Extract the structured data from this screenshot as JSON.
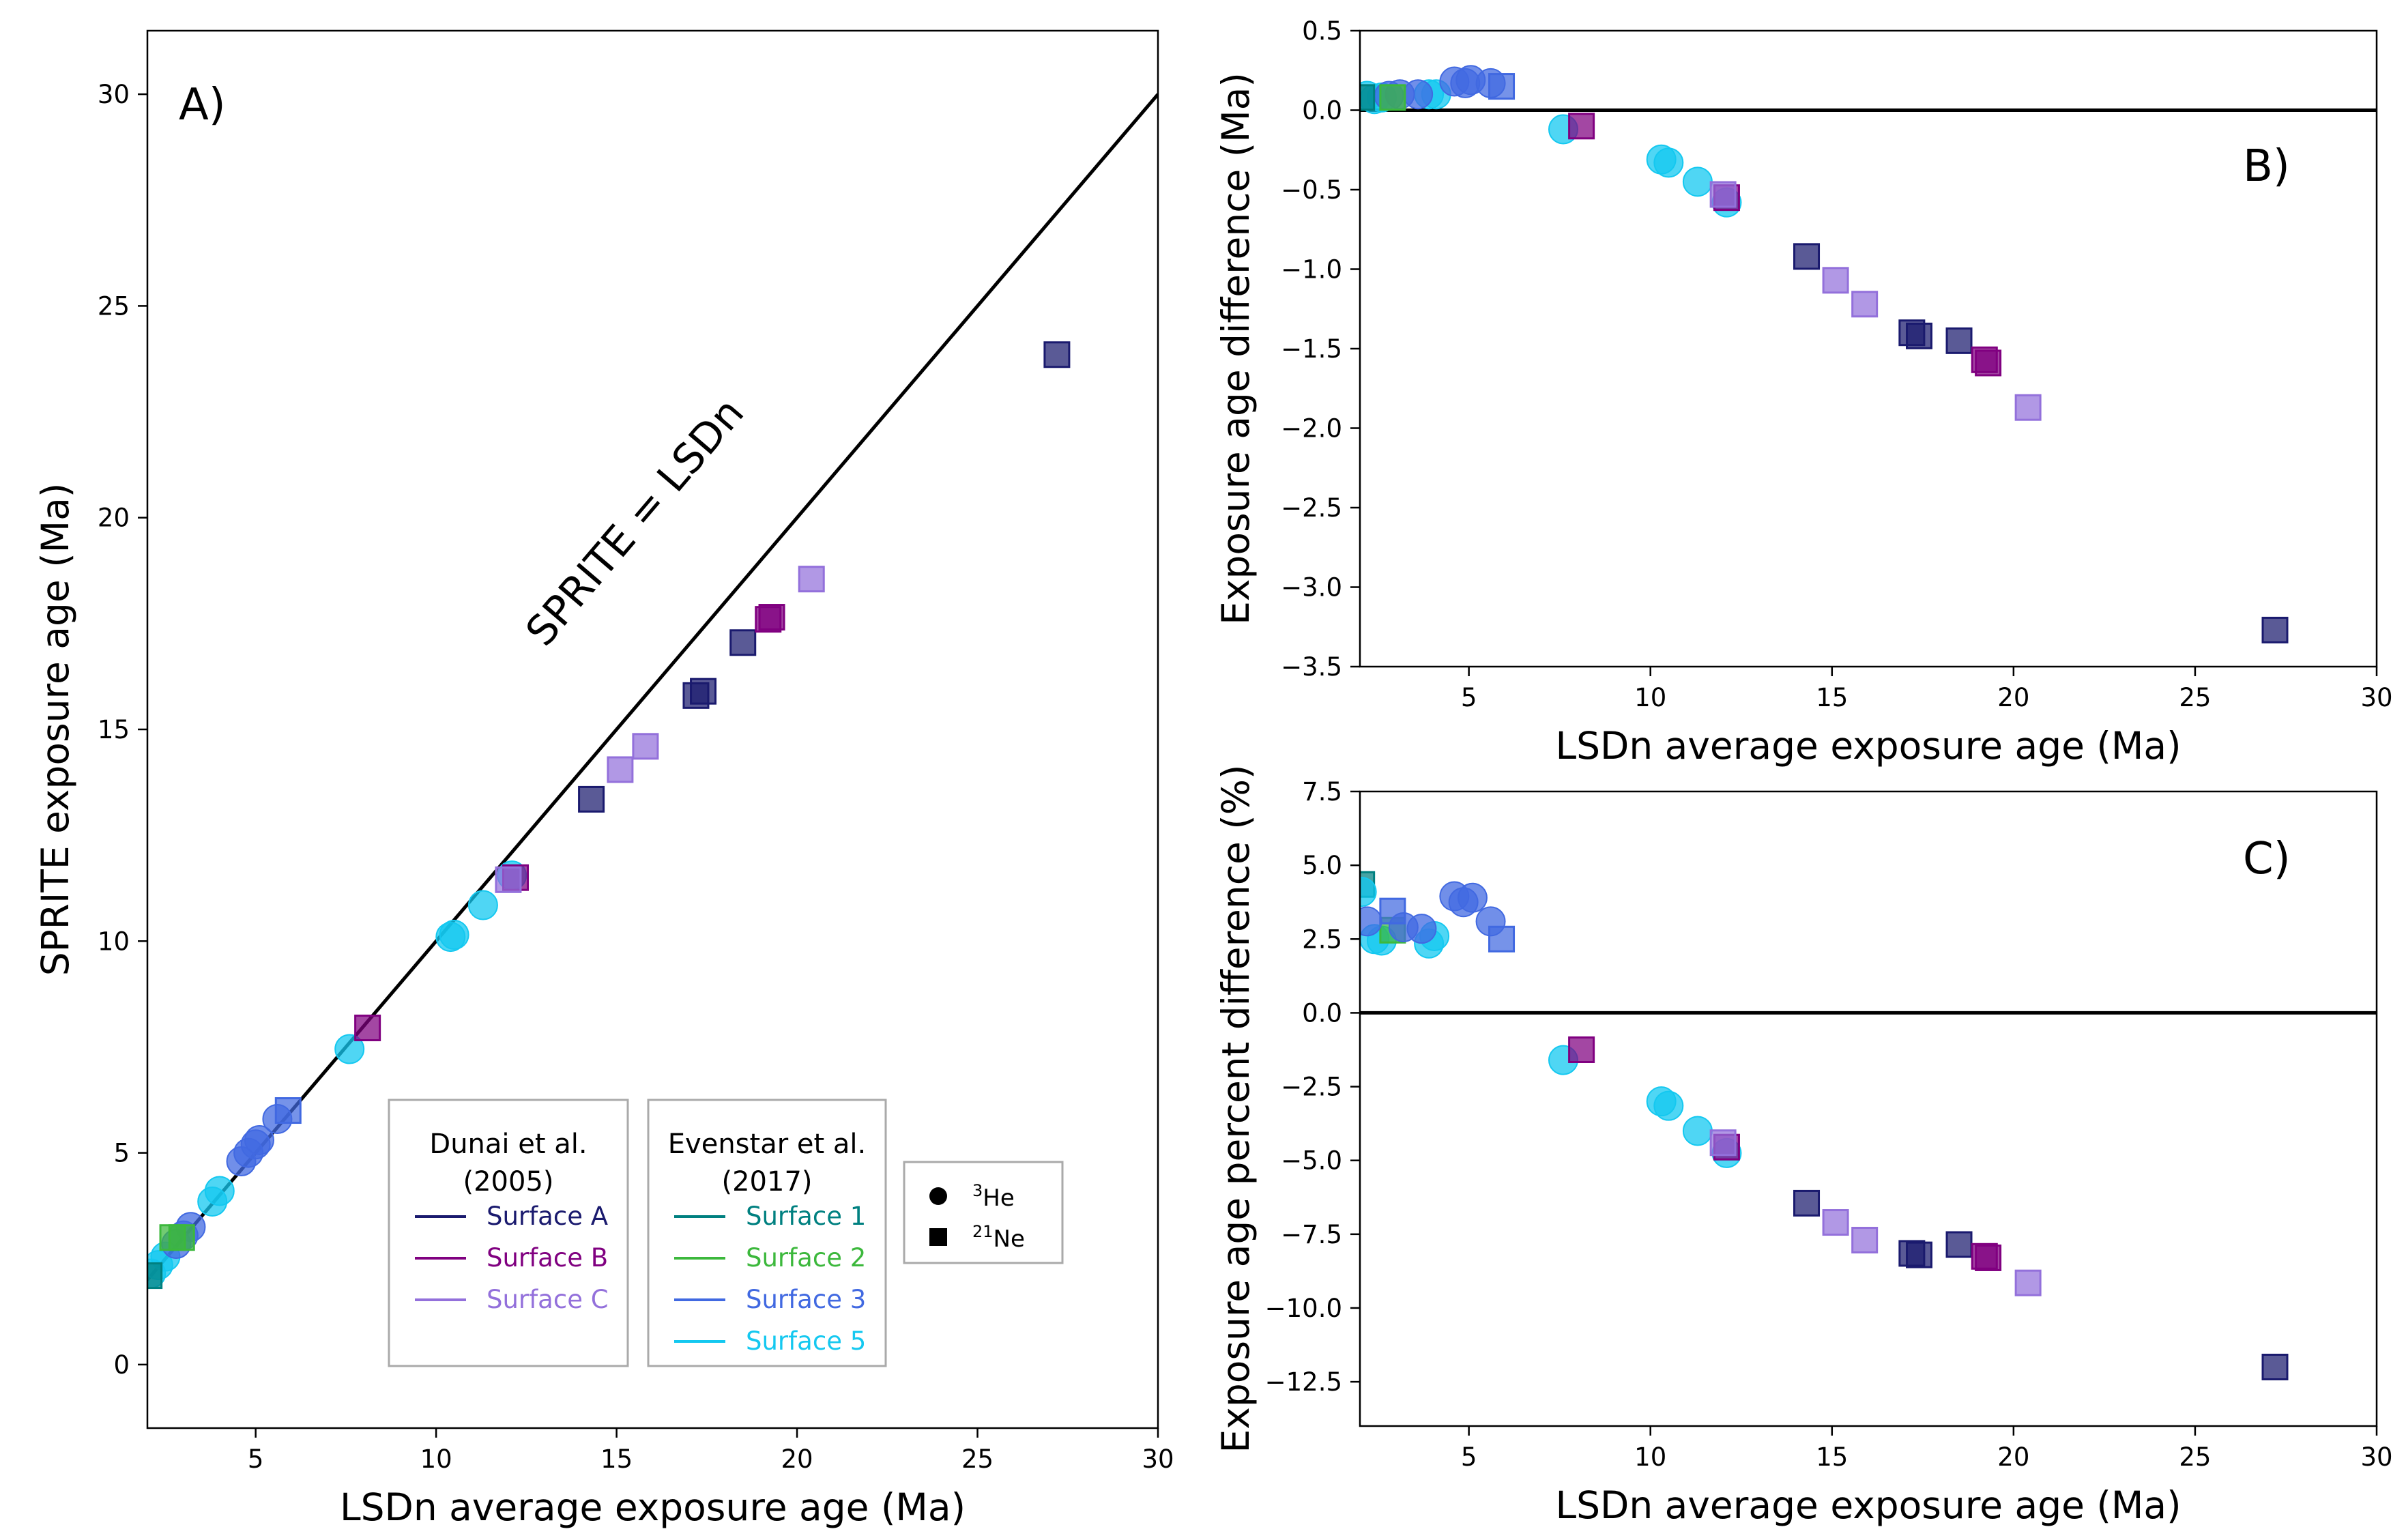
{
  "colors": {
    "surface_a": "#1a1a6e",
    "surface_b": "#800080",
    "surface_c": "#9370db",
    "surface_1": "#008080",
    "surface_2": "#3cb83c",
    "surface_3": "#4169e1",
    "surface_5": "#14c8f0"
  },
  "legend": {
    "dunai_title": "Dunai et al.\n(2005)",
    "dunai_items": [
      {
        "label": "Surface A",
        "key": "surface_a"
      },
      {
        "label": "Surface B",
        "key": "surface_b"
      },
      {
        "label": "Surface C",
        "key": "surface_c"
      }
    ],
    "evenstar_title": "Evenstar et al.\n(2017)",
    "evenstar_items": [
      {
        "label": "Surface 1",
        "key": "surface_1"
      },
      {
        "label": "Surface 2",
        "key": "surface_2"
      },
      {
        "label": "Surface 3",
        "key": "surface_3"
      },
      {
        "label": "Surface 5",
        "key": "surface_5"
      }
    ],
    "markers": [
      {
        "shape": "circle",
        "sup": "3",
        "text": "He"
      },
      {
        "shape": "square",
        "sup": "21",
        "text": "Ne"
      }
    ]
  },
  "chart_data": [
    {
      "type": "scatter",
      "panel_label": "A)",
      "xlabel": "LSDn average exposure age (Ma)",
      "ylabel": "SPRITE exposure age (Ma)",
      "xlim": [
        2,
        30
      ],
      "ylim": [
        -1.5,
        31.5
      ],
      "xticks": [
        5,
        10,
        15,
        20,
        25,
        30
      ],
      "yticks": [
        0,
        5,
        10,
        15,
        20,
        25,
        30
      ],
      "reference_line": {
        "label": "SPRITE = LSDn",
        "from": [
          2,
          2
        ],
        "to": [
          30,
          30
        ]
      },
      "series": [
        {
          "key": "surface_5",
          "shape": "circle",
          "points": [
            [
              2.1,
              2.15
            ],
            [
              2.3,
              2.35
            ],
            [
              2.5,
              2.55
            ],
            [
              3.8,
              3.85
            ],
            [
              4.0,
              4.1
            ],
            [
              7.6,
              7.45
            ],
            [
              10.4,
              10.1
            ],
            [
              10.5,
              10.15
            ],
            [
              11.3,
              10.85
            ],
            [
              12.1,
              11.55
            ]
          ]
        },
        {
          "key": "surface_3",
          "shape": "circle",
          "points": [
            [
              2.8,
              2.85
            ],
            [
              3.0,
              3.05
            ],
            [
              3.2,
              3.25
            ],
            [
              4.6,
              4.8
            ],
            [
              4.8,
              5.0
            ],
            [
              5.0,
              5.2
            ],
            [
              5.1,
              5.3
            ],
            [
              5.6,
              5.8
            ]
          ]
        },
        {
          "key": "surface_3",
          "shape": "square",
          "points": [
            [
              5.9,
              6.0
            ]
          ]
        },
        {
          "key": "surface_1",
          "shape": "square",
          "points": [
            [
              2.05,
              2.1
            ]
          ]
        },
        {
          "key": "surface_2",
          "shape": "square",
          "points": [
            [
              2.7,
              3.0
            ],
            [
              2.95,
              3.0
            ]
          ]
        },
        {
          "key": "surface_a",
          "shape": "square",
          "points": [
            [
              14.3,
              13.35
            ],
            [
              17.2,
              15.8
            ],
            [
              17.4,
              15.9
            ],
            [
              18.5,
              17.05
            ],
            [
              27.2,
              23.85
            ]
          ]
        },
        {
          "key": "surface_b",
          "shape": "square",
          "points": [
            [
              8.1,
              7.95
            ],
            [
              12.2,
              11.5
            ],
            [
              19.2,
              17.6
            ],
            [
              19.3,
              17.65
            ]
          ]
        },
        {
          "key": "surface_c",
          "shape": "square",
          "points": [
            [
              12.0,
              11.45
            ],
            [
              15.1,
              14.05
            ],
            [
              15.8,
              14.6
            ],
            [
              20.4,
              18.55
            ]
          ]
        }
      ]
    },
    {
      "type": "scatter",
      "panel_label": "B)",
      "xlabel": "LSDn average exposure age (Ma)",
      "ylabel": "Exposure age difference (Ma)",
      "xlim": [
        2,
        30
      ],
      "ylim": [
        -3.5,
        0.5
      ],
      "xticks": [
        5,
        10,
        15,
        20,
        25,
        30
      ],
      "yticks": [
        0.5,
        0.0,
        -0.5,
        -1.0,
        -1.5,
        -2.0,
        -2.5,
        -3.0,
        -3.5
      ],
      "ytick_labels": [
        "0.5",
        "0.0",
        "−0.5",
        "−1.0",
        "−1.5",
        "−2.0",
        "−2.5",
        "−3.0",
        "−3.5"
      ],
      "zero_line": 0,
      "series": [
        {
          "key": "surface_5",
          "shape": "circle",
          "points": [
            [
              2.2,
              0.09
            ],
            [
              2.4,
              0.07
            ],
            [
              2.6,
              0.08
            ],
            [
              3.9,
              0.1
            ],
            [
              4.1,
              0.1
            ],
            [
              7.6,
              -0.12
            ],
            [
              10.3,
              -0.31
            ],
            [
              10.5,
              -0.33
            ],
            [
              11.3,
              -0.45
            ],
            [
              12.1,
              -0.58
            ]
          ]
        },
        {
          "key": "surface_3",
          "shape": "circle",
          "points": [
            [
              2.8,
              0.09
            ],
            [
              3.1,
              0.1
            ],
            [
              3.6,
              0.1
            ],
            [
              4.6,
              0.18
            ],
            [
              4.9,
              0.17
            ],
            [
              5.05,
              0.19
            ],
            [
              5.6,
              0.17
            ]
          ]
        },
        {
          "key": "surface_3",
          "shape": "square",
          "points": [
            [
              5.9,
              0.15
            ]
          ]
        },
        {
          "key": "surface_2",
          "shape": "square",
          "points": [
            [
              2.9,
              0.08
            ]
          ]
        },
        {
          "key": "surface_1",
          "shape": "square",
          "points": [
            [
              2.05,
              0.08
            ]
          ]
        },
        {
          "key": "surface_a",
          "shape": "square",
          "points": [
            [
              14.3,
              -0.92
            ],
            [
              17.2,
              -1.4
            ],
            [
              17.4,
              -1.42
            ],
            [
              18.5,
              -1.45
            ],
            [
              27.2,
              -3.27
            ]
          ]
        },
        {
          "key": "surface_b",
          "shape": "square",
          "points": [
            [
              8.1,
              -0.1
            ],
            [
              12.1,
              -0.55
            ],
            [
              19.2,
              -1.57
            ],
            [
              19.3,
              -1.59
            ]
          ]
        },
        {
          "key": "surface_c",
          "shape": "square",
          "points": [
            [
              12.0,
              -0.53
            ],
            [
              15.1,
              -1.07
            ],
            [
              15.9,
              -1.22
            ],
            [
              20.4,
              -1.87
            ]
          ]
        }
      ]
    },
    {
      "type": "scatter",
      "panel_label": "C)",
      "xlabel": "LSDn average exposure age (Ma)",
      "ylabel": "Exposure age percent difference (%)",
      "xlim": [
        2,
        30
      ],
      "ylim": [
        -14,
        7.5
      ],
      "xticks": [
        5,
        10,
        15,
        20,
        25,
        30
      ],
      "yticks": [
        7.5,
        5.0,
        2.5,
        0.0,
        -2.5,
        -5.0,
        -7.5,
        -10.0,
        -12.5
      ],
      "ytick_labels": [
        "7.5",
        "5.0",
        "2.5",
        "0.0",
        "−2.5",
        "−5.0",
        "−7.5",
        "−10.0",
        "−12.5"
      ],
      "zero_line": 0,
      "series": [
        {
          "key": "surface_1",
          "shape": "square",
          "points": [
            [
              2.05,
              4.35
            ]
          ]
        },
        {
          "key": "surface_5",
          "shape": "circle",
          "points": [
            [
              2.05,
              4.1
            ],
            [
              2.4,
              2.5
            ],
            [
              2.6,
              2.45
            ],
            [
              3.9,
              2.35
            ],
            [
              4.05,
              2.6
            ],
            [
              7.6,
              -1.6
            ],
            [
              10.3,
              -3.0
            ],
            [
              10.5,
              -3.15
            ],
            [
              11.3,
              -4.0
            ],
            [
              12.1,
              -4.75
            ]
          ]
        },
        {
          "key": "surface_2",
          "shape": "square",
          "points": [
            [
              2.9,
              2.8
            ]
          ]
        },
        {
          "key": "surface_3",
          "shape": "circle",
          "points": [
            [
              2.2,
              3.1
            ],
            [
              3.2,
              2.9
            ],
            [
              3.7,
              2.85
            ],
            [
              4.6,
              3.95
            ],
            [
              4.85,
              3.75
            ],
            [
              5.1,
              3.9
            ],
            [
              5.6,
              3.1
            ]
          ]
        },
        {
          "key": "surface_3",
          "shape": "square",
          "points": [
            [
              2.9,
              3.45
            ],
            [
              5.9,
              2.5
            ]
          ]
        },
        {
          "key": "surface_a",
          "shape": "square",
          "points": [
            [
              14.3,
              -6.45
            ],
            [
              17.2,
              -8.15
            ],
            [
              17.4,
              -8.2
            ],
            [
              18.5,
              -7.85
            ],
            [
              27.2,
              -12.0
            ]
          ]
        },
        {
          "key": "surface_b",
          "shape": "square",
          "points": [
            [
              8.1,
              -1.25
            ],
            [
              12.1,
              -4.55
            ],
            [
              19.2,
              -8.25
            ],
            [
              19.3,
              -8.3
            ]
          ]
        },
        {
          "key": "surface_c",
          "shape": "square",
          "points": [
            [
              12.0,
              -4.4
            ],
            [
              15.1,
              -7.1
            ],
            [
              15.9,
              -7.7
            ],
            [
              20.4,
              -9.15
            ]
          ]
        }
      ]
    }
  ]
}
